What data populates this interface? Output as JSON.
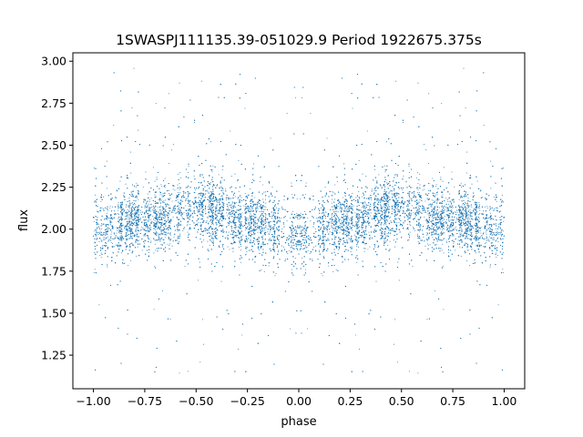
{
  "chart_data": {
    "type": "scatter",
    "title": "1SWASPJ111135.39-051029.9 Period 1922675.375s",
    "xlabel": "phase",
    "ylabel": "flux",
    "xlim": [
      -1.1,
      1.1
    ],
    "ylim": [
      1.05,
      3.05
    ],
    "xticks": [
      -1.0,
      -0.75,
      -0.5,
      -0.25,
      0.0,
      0.25,
      0.5,
      0.75,
      1.0
    ],
    "xtick_labels": [
      "−1.00",
      "−0.75",
      "−0.50",
      "−0.25",
      "0.00",
      "0.25",
      "0.50",
      "0.75",
      "1.00"
    ],
    "yticks": [
      1.25,
      1.5,
      1.75,
      2.0,
      2.25,
      2.5,
      2.75,
      3.0
    ],
    "ytick_labels": [
      "1.25",
      "1.50",
      "1.75",
      "2.00",
      "2.25",
      "2.50",
      "2.75",
      "3.00"
    ],
    "grid": false,
    "marker_color": "#1f77b4",
    "series": [
      {
        "points_description": "dense phase-folded light curve, mirrored about phase 0",
        "phase_range": [
          -1.0,
          1.0
        ],
        "flux_core_range": [
          1.8,
          2.25
        ],
        "flux_outlier_range": [
          1.12,
          2.98
        ],
        "profile": [
          {
            "phase": -1.0,
            "flux": 2.0
          },
          {
            "phase": -0.75,
            "flux": 2.05
          },
          {
            "phase": -0.5,
            "flux": 2.12
          },
          {
            "phase": -0.25,
            "flux": 2.05
          },
          {
            "phase": 0.0,
            "flux": 1.98
          },
          {
            "phase": 0.25,
            "flux": 2.05
          },
          {
            "phase": 0.5,
            "flux": 2.12
          },
          {
            "phase": 0.75,
            "flux": 2.05
          },
          {
            "phase": 1.0,
            "flux": 2.0
          }
        ]
      }
    ]
  }
}
